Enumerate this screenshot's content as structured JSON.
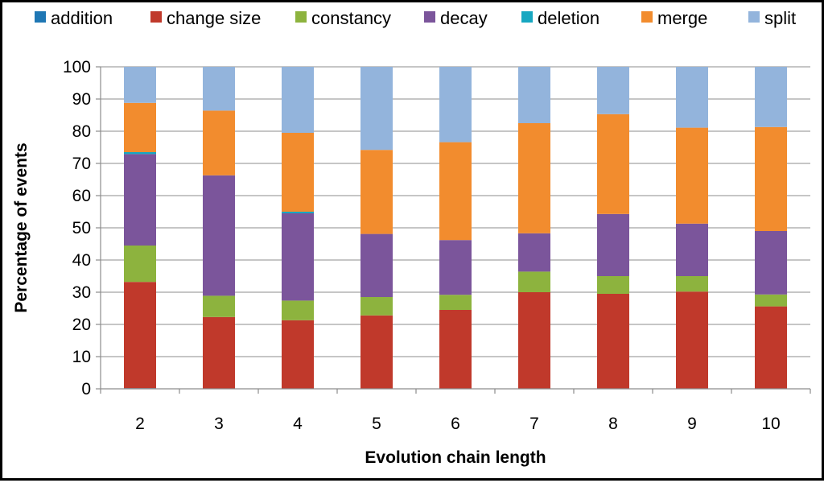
{
  "chart_data": {
    "type": "bar",
    "stacked": true,
    "title": "",
    "xlabel": "Evolution chain length",
    "ylabel": "Percentage of events",
    "ylim": [
      0,
      100
    ],
    "yticks": [
      0,
      10,
      20,
      30,
      40,
      50,
      60,
      70,
      80,
      90,
      100
    ],
    "grid": true,
    "legend_position": "top",
    "categories": [
      "2",
      "3",
      "4",
      "5",
      "6",
      "7",
      "8",
      "9",
      "10"
    ],
    "series": [
      {
        "name": "addition",
        "color": "#1F77B4",
        "values": [
          0.2,
          0,
          0,
          0,
          0,
          0,
          0,
          0,
          0
        ]
      },
      {
        "name": "change size",
        "color": "#C0392B",
        "values": [
          33,
          22.3,
          21.3,
          22.8,
          24.5,
          30,
          29.5,
          30.2,
          25.6
        ]
      },
      {
        "name": "constancy",
        "color": "#8DB33E",
        "values": [
          11.3,
          6.6,
          6.1,
          5.7,
          4.7,
          6.4,
          5.5,
          4.8,
          3.7
        ]
      },
      {
        "name": "decay",
        "color": "#7B559B",
        "values": [
          28.4,
          37.4,
          27.1,
          19.6,
          17,
          11.9,
          19.3,
          16.3,
          19.7
        ]
      },
      {
        "name": "deletion",
        "color": "#17A7C1",
        "values": [
          0.6,
          0,
          0.5,
          0,
          0,
          0,
          0,
          0,
          0
        ]
      },
      {
        "name": "merge",
        "color": "#F28C2E",
        "values": [
          15.3,
          20.1,
          24.5,
          26.1,
          30.4,
          34.2,
          31.0,
          29.8,
          32.3
        ]
      },
      {
        "name": "split",
        "color": "#93B4DC",
        "values": [
          11.2,
          13.6,
          20.5,
          25.8,
          23.4,
          17.5,
          14.7,
          18.9,
          18.7
        ]
      }
    ]
  }
}
